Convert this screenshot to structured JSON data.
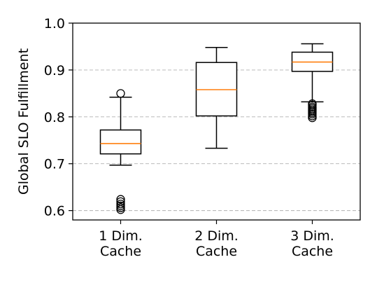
{
  "chart_data": {
    "type": "box",
    "title": "",
    "xlabel": "",
    "ylabel": "Global SLO Fulfillment",
    "ylim": [
      0.58,
      1.0
    ],
    "yticks": [
      "0.6",
      "0.7",
      "0.8",
      "0.9",
      "1.0"
    ],
    "grid": "horizontal dashed",
    "categories": [
      [
        "1 Dim.",
        "Cache"
      ],
      [
        "2 Dim.",
        "Cache"
      ],
      [
        "3 Dim.",
        "Cache"
      ]
    ],
    "boxes": [
      {
        "whisker_low": 0.697,
        "q1": 0.721,
        "median": 0.743,
        "q3": 0.772,
        "whisker_high": 0.842,
        "outliers": [
          0.85,
          0.624,
          0.619,
          0.614,
          0.61,
          0.606,
          0.602
        ]
      },
      {
        "whisker_low": 0.733,
        "q1": 0.802,
        "median": 0.858,
        "q3": 0.916,
        "whisker_high": 0.948,
        "outliers": []
      },
      {
        "whisker_low": 0.832,
        "q1": 0.897,
        "median": 0.917,
        "q3": 0.938,
        "whisker_high": 0.956,
        "outliers": [
          0.828,
          0.825,
          0.821,
          0.818,
          0.815,
          0.812,
          0.809,
          0.806,
          0.802,
          0.798
        ]
      }
    ],
    "colors": {
      "box": "#000000",
      "median": "#ff7f0e",
      "grid": "#b0b0b0"
    }
  }
}
